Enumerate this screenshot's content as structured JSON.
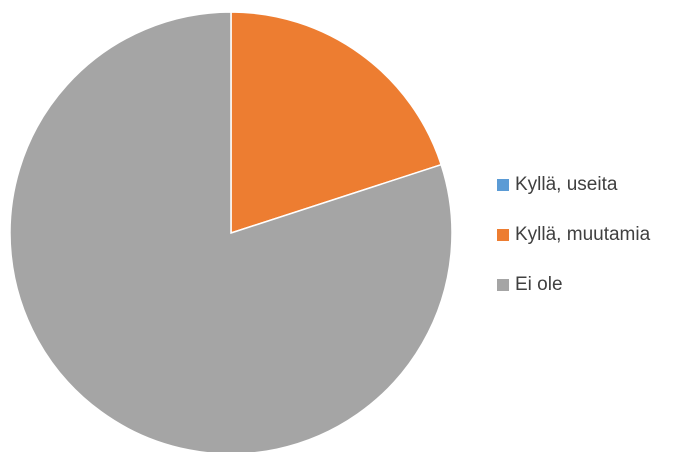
{
  "chart_data": {
    "type": "pie",
    "title": "",
    "categories": [
      "Kyllä, useita",
      "Kyllä, muutamia",
      "Ei ole"
    ],
    "values": [
      0,
      20,
      80
    ],
    "colors": [
      "#5B9BD5",
      "#ED7D31",
      "#A5A5A5"
    ],
    "start_angle_deg": 0,
    "direction": "clockwise",
    "legend_position": "right"
  }
}
